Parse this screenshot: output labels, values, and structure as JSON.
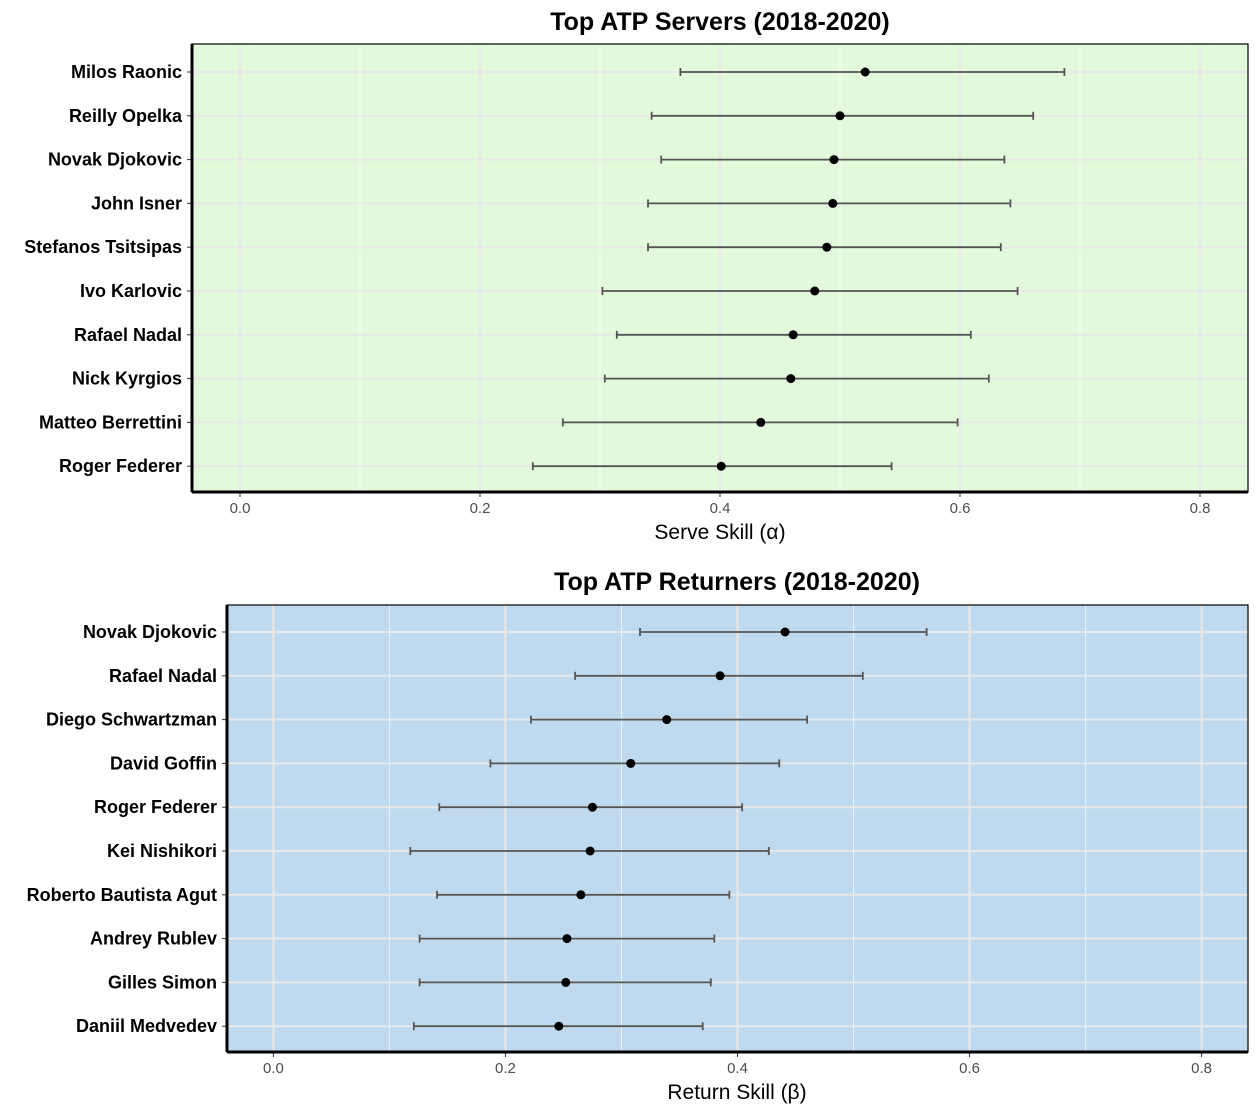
{
  "chart_data": [
    {
      "type": "scatter",
      "title": "Top ATP Servers (2018-2020)",
      "xlabel": "Serve Skill (α)",
      "ylabel": "",
      "xlim": [
        -0.04,
        0.84
      ],
      "x_ticks": [
        0.0,
        0.2,
        0.4,
        0.6,
        0.8
      ],
      "x_tick_labels": [
        "0.0",
        "0.2",
        "0.4",
        "0.6",
        "0.8"
      ],
      "panel_color": "#e3f9dc",
      "grid": true,
      "legend": "none",
      "categories": [
        "Milos Raonic",
        "Reilly Opelka",
        "Novak Djokovic",
        "John Isner",
        "Stefanos Tsitsipas",
        "Ivo Karlovic",
        "Rafael Nadal",
        "Nick Kyrgios",
        "Matteo Berrettini",
        "Roger Federer"
      ],
      "values": [
        0.521,
        0.5,
        0.495,
        0.494,
        0.489,
        0.479,
        0.461,
        0.459,
        0.434,
        0.401
      ],
      "lower": [
        0.367,
        0.343,
        0.351,
        0.34,
        0.34,
        0.302,
        0.314,
        0.304,
        0.269,
        0.244
      ],
      "upper": [
        0.687,
        0.661,
        0.637,
        0.642,
        0.634,
        0.648,
        0.609,
        0.624,
        0.598,
        0.543
      ]
    },
    {
      "type": "scatter",
      "title": "Top ATP Returners (2018-2020)",
      "xlabel": "Return Skill (β)",
      "ylabel": "",
      "xlim": [
        -0.04,
        0.84
      ],
      "x_ticks": [
        0.0,
        0.2,
        0.4,
        0.6,
        0.8
      ],
      "x_tick_labels": [
        "0.0",
        "0.2",
        "0.4",
        "0.6",
        "0.8"
      ],
      "panel_color": "#bfdaee",
      "grid": true,
      "legend": "none",
      "categories": [
        "Novak Djokovic",
        "Rafael Nadal",
        "Diego Schwartzman",
        "David Goffin",
        "Roger Federer",
        "Kei Nishikori",
        "Roberto Bautista Agut",
        "Andrey Rublev",
        "Gilles Simon",
        "Daniil Medvedev"
      ],
      "values": [
        0.441,
        0.385,
        0.339,
        0.308,
        0.275,
        0.273,
        0.265,
        0.253,
        0.252,
        0.246
      ],
      "lower": [
        0.316,
        0.26,
        0.222,
        0.187,
        0.143,
        0.118,
        0.141,
        0.126,
        0.126,
        0.121
      ],
      "upper": [
        0.563,
        0.508,
        0.46,
        0.436,
        0.404,
        0.427,
        0.393,
        0.38,
        0.377,
        0.37
      ]
    }
  ]
}
